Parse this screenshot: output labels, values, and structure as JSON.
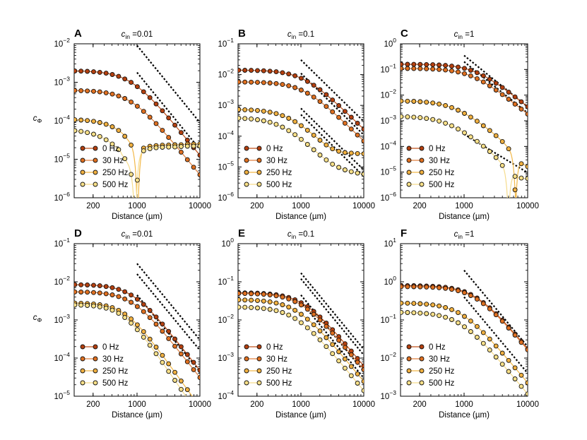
{
  "chart_data": [
    {
      "id": "A",
      "letter": "A",
      "title_symbol": "c",
      "title_sub": "in",
      "title_value": " =0.01",
      "type": "line",
      "xscale": "log",
      "yscale": "log",
      "xlim": [
        100,
        10000
      ],
      "ylim_exp": [
        -6,
        -2
      ],
      "x_ticks": [
        "200",
        "1000",
        "10000"
      ],
      "x_tick_values": [
        200,
        1000,
        10000
      ],
      "y_ticks": [
        {
          "base": "10",
          "exp": "−6"
        },
        {
          "base": "10",
          "exp": "−5"
        },
        {
          "base": "10",
          "exp": "−4"
        },
        {
          "base": "10",
          "exp": "−3"
        },
        {
          "base": "10",
          "exp": "−2"
        }
      ],
      "y_tick_values": [
        1e-06,
        1e-05,
        0.0001,
        0.001,
        0.01
      ],
      "xlabel": "Distance (µm)",
      "ylabel_symbol": "c",
      "ylabel_sub": "Φ",
      "legend": [
        "0 Hz",
        "30 Hz",
        "250 Hz",
        "500 Hz"
      ],
      "series": [
        {
          "name": "0 Hz",
          "plateau": 0.002,
          "rc": 800,
          "power": 2,
          "notch": null
        },
        {
          "name": "30 Hz",
          "plateau": 0.00062,
          "rc": 800,
          "power": 2,
          "notch": null
        },
        {
          "name": "250 Hz",
          "plateau": 0.00011,
          "rc": 550,
          "power": 2,
          "notch": 1030,
          "notch_depth": 0.0001,
          "tail": 2.5e-05
        },
        {
          "name": "500 Hz",
          "plateau": 6e-05,
          "rc": 350,
          "power": 2,
          "notch": 950,
          "notch_depth": 4e-05,
          "tail": 2.2e-05
        }
      ],
      "asymptotes": [
        {
          "x0": 1000,
          "y0": 0.009,
          "slope": -2
        },
        {
          "x0": 1000,
          "y0": 0.0018,
          "slope": -2
        }
      ]
    },
    {
      "id": "B",
      "letter": "B",
      "title_symbol": "c",
      "title_sub": "in",
      "title_value": " =0.1",
      "type": "line",
      "xscale": "log",
      "yscale": "log",
      "xlim": [
        100,
        10000
      ],
      "ylim_exp": [
        -6,
        -1
      ],
      "x_ticks": [
        "200",
        "1000",
        "10000"
      ],
      "x_tick_values": [
        200,
        1000,
        10000
      ],
      "y_ticks": [
        {
          "base": "10",
          "exp": "−6"
        },
        {
          "base": "10",
          "exp": "−5"
        },
        {
          "base": "10",
          "exp": "−4"
        },
        {
          "base": "10",
          "exp": "−3"
        },
        {
          "base": "10",
          "exp": "−2"
        },
        {
          "base": "10",
          "exp": "−1"
        }
      ],
      "y_tick_values": [
        1e-06,
        1e-05,
        0.0001,
        0.001,
        0.01,
        0.1
      ],
      "xlabel": "Distance (µm)",
      "ylabel_symbol": "",
      "ylabel_sub": "",
      "legend": [
        "0 Hz",
        "30 Hz",
        "250 Hz",
        "500 Hz"
      ],
      "series": [
        {
          "name": "0 Hz",
          "plateau": 0.014,
          "rc": 1100,
          "power": 2,
          "notch": null
        },
        {
          "name": "30 Hz",
          "plateau": 0.0058,
          "rc": 1100,
          "power": 2,
          "notch": null
        },
        {
          "name": "250 Hz",
          "plateau": 0.00075,
          "rc": 650,
          "power": 2,
          "notch": null,
          "tail": 2.5e-05
        },
        {
          "name": "500 Hz",
          "plateau": 0.0004,
          "rc": 500,
          "power": 2,
          "notch": null,
          "tail": 5e-06
        }
      ],
      "asymptotes": [
        {
          "x0": 1000,
          "y0": 0.03,
          "slope": -2
        },
        {
          "x0": 1000,
          "y0": 0.011,
          "slope": -2
        },
        {
          "x0": 1000,
          "y0": 0.0008,
          "slope": -2
        },
        {
          "x0": 1000,
          "y0": 0.0005,
          "slope": -2
        }
      ]
    },
    {
      "id": "C",
      "letter": "C",
      "title_symbol": "c",
      "title_sub": "in",
      "title_value": " =1",
      "type": "line",
      "xscale": "log",
      "yscale": "log",
      "xlim": [
        100,
        10000
      ],
      "ylim_exp": [
        -6,
        0
      ],
      "x_ticks": [
        "200",
        "1000",
        "10000"
      ],
      "x_tick_values": [
        200,
        1000,
        10000
      ],
      "y_ticks": [
        {
          "base": "10",
          "exp": "−6"
        },
        {
          "base": "10",
          "exp": "−5"
        },
        {
          "base": "10",
          "exp": "−4"
        },
        {
          "base": "10",
          "exp": "−3"
        },
        {
          "base": "10",
          "exp": "−2"
        },
        {
          "base": "10",
          "exp": "−1"
        },
        {
          "base": "10",
          "exp": "0"
        }
      ],
      "y_tick_values": [
        1e-06,
        1e-05,
        0.0001,
        0.001,
        0.01,
        0.1,
        1
      ],
      "xlabel": "Distance (µm)",
      "ylabel_symbol": "",
      "ylabel_sub": "",
      "legend": [
        "0 Hz",
        "30 Hz",
        "250 Hz",
        "500 Hz"
      ],
      "series": [
        {
          "name": "0 Hz",
          "plateau": 0.16,
          "rc": 1500,
          "power": 2,
          "notch": null
        },
        {
          "name": "30 Hz",
          "plateau": 0.11,
          "rc": 1300,
          "power": 2,
          "notch": null
        },
        {
          "name": "250 Hz",
          "plateau": 0.006,
          "rc": 700,
          "power": 2,
          "notch": 6500,
          "notch_depth": 1e-05,
          "tail": 1.5e-05
        },
        {
          "name": "500 Hz",
          "plateau": 0.0015,
          "rc": 550,
          "power": 2,
          "notch": 5000,
          "notch_depth": 6e-06,
          "tail": 6e-06
        }
      ],
      "asymptotes": [
        {
          "x0": 1000,
          "y0": 0.35,
          "slope": -2
        },
        {
          "x0": 1000,
          "y0": 0.2,
          "slope": -2
        },
        {
          "x0": 1000,
          "y0": 0.0003,
          "slope": -1.5
        }
      ]
    },
    {
      "id": "D",
      "letter": "D",
      "title_symbol": "c",
      "title_sub": "in",
      "title_value": " =0.01",
      "type": "line",
      "xscale": "log",
      "yscale": "log",
      "xlim": [
        100,
        10000
      ],
      "ylim_exp": [
        -5,
        -1
      ],
      "x_ticks": [
        "200",
        "1000",
        "10000"
      ],
      "x_tick_values": [
        200,
        1000,
        10000
      ],
      "y_ticks": [
        {
          "base": "10",
          "exp": "−5"
        },
        {
          "base": "10",
          "exp": "−4"
        },
        {
          "base": "10",
          "exp": "−3"
        },
        {
          "base": "10",
          "exp": "−2"
        },
        {
          "base": "10",
          "exp": "−1"
        }
      ],
      "y_tick_values": [
        1e-05,
        0.0001,
        0.001,
        0.01,
        0.1
      ],
      "xlabel": "Distance (µm)",
      "ylabel_symbol": "c",
      "ylabel_sub": "Φ",
      "legend": [
        "0 Hz",
        "30 Hz",
        "250 Hz",
        "500 Hz"
      ],
      "series": [
        {
          "name": "0 Hz",
          "plateau": 0.0085,
          "rc": 850,
          "power": 2.1,
          "notch": null
        },
        {
          "name": "30 Hz",
          "plateau": 0.0055,
          "rc": 850,
          "power": 2.1,
          "notch": null
        },
        {
          "name": "250 Hz",
          "plateau": 0.0028,
          "rc": 650,
          "power": 2.3,
          "notch": null
        },
        {
          "name": "500 Hz",
          "plateau": 0.0025,
          "rc": 600,
          "power": 2.4,
          "notch": null
        }
      ],
      "asymptotes": [
        {
          "x0": 1000,
          "y0": 0.03,
          "slope": -2
        },
        {
          "x0": 1000,
          "y0": 0.016,
          "slope": -2
        },
        {
          "x0": 1000,
          "y0": 0.0045,
          "slope": -2
        }
      ]
    },
    {
      "id": "E",
      "letter": "E",
      "title_symbol": "c",
      "title_sub": "in",
      "title_value": " =0.1",
      "type": "line",
      "xscale": "log",
      "yscale": "log",
      "xlim": [
        100,
        10000
      ],
      "ylim_exp": [
        -4,
        0
      ],
      "x_ticks": [
        "200",
        "1000",
        "10000"
      ],
      "x_tick_values": [
        200,
        1000,
        10000
      ],
      "y_ticks": [
        {
          "base": "10",
          "exp": "−4"
        },
        {
          "base": "10",
          "exp": "−3"
        },
        {
          "base": "10",
          "exp": "−2"
        },
        {
          "base": "10",
          "exp": "−1"
        },
        {
          "base": "10",
          "exp": "0"
        }
      ],
      "y_tick_values": [
        0.0001,
        0.001,
        0.01,
        0.1,
        1
      ],
      "xlabel": "Distance (µm)",
      "ylabel_symbol": "",
      "ylabel_sub": "",
      "legend": [
        "0 Hz",
        "30 Hz",
        "250 Hz",
        "500 Hz"
      ],
      "series": [
        {
          "name": "0 Hz",
          "plateau": 0.052,
          "rc": 1100,
          "power": 2,
          "notch": null
        },
        {
          "name": "30 Hz",
          "plateau": 0.05,
          "rc": 1000,
          "power": 2,
          "notch": null
        },
        {
          "name": "250 Hz",
          "plateau": 0.034,
          "rc": 850,
          "power": 2,
          "notch": null
        },
        {
          "name": "500 Hz",
          "plateau": 0.022,
          "rc": 800,
          "power": 2,
          "notch": null
        }
      ],
      "asymptotes": [
        {
          "x0": 1000,
          "y0": 0.17,
          "slope": -2
        },
        {
          "x0": 1000,
          "y0": 0.12,
          "slope": -2
        },
        {
          "x0": 1000,
          "y0": 0.045,
          "slope": -2
        },
        {
          "x0": 1000,
          "y0": 0.03,
          "slope": -2
        }
      ]
    },
    {
      "id": "F",
      "letter": "F",
      "title_symbol": "c",
      "title_sub": "in",
      "title_value": " =1",
      "type": "line",
      "xscale": "log",
      "yscale": "log",
      "xlim": [
        100,
        10000
      ],
      "ylim_exp": [
        -3,
        1
      ],
      "x_ticks": [
        "200",
        "1000",
        "10000"
      ],
      "x_tick_values": [
        200,
        1000,
        10000
      ],
      "y_ticks": [
        {
          "base": "10",
          "exp": "−3"
        },
        {
          "base": "10",
          "exp": "−2"
        },
        {
          "base": "10",
          "exp": "−1"
        },
        {
          "base": "10",
          "exp": "0"
        },
        {
          "base": "10",
          "exp": "1"
        }
      ],
      "y_tick_values": [
        0.001,
        0.01,
        0.1,
        1,
        10
      ],
      "xlabel": "Distance (µm)",
      "ylabel_symbol": "",
      "ylabel_sub": "",
      "legend": [
        "0 Hz",
        "30 Hz",
        "250 Hz",
        "500 Hz"
      ],
      "series": [
        {
          "name": "0 Hz",
          "plateau": 0.8,
          "rc": 1500,
          "power": 2,
          "notch": null
        },
        {
          "name": "30 Hz",
          "plateau": 0.75,
          "rc": 1500,
          "power": 2,
          "notch": null
        },
        {
          "name": "250 Hz",
          "plateau": 0.28,
          "rc": 900,
          "power": 2,
          "notch": null
        },
        {
          "name": "500 Hz",
          "plateau": 0.16,
          "rc": 850,
          "power": 2,
          "notch": null
        }
      ],
      "asymptotes": [
        {
          "x0": 1000,
          "y0": 2.0,
          "slope": -2
        },
        {
          "x0": 1000,
          "y0": 0.4,
          "slope": -2
        }
      ]
    }
  ],
  "series_colors": {
    "0 Hz": "#b5400f",
    "30 Hz": "#e07020",
    "250 Hz": "#f0b040",
    "500 Hz": "#f8e088"
  },
  "line_colors": {
    "0 Hz": "#c0501a",
    "30 Hz": "#e08040",
    "250 Hz": "#f2b848",
    "500 Hz": "#f6dc8c"
  }
}
